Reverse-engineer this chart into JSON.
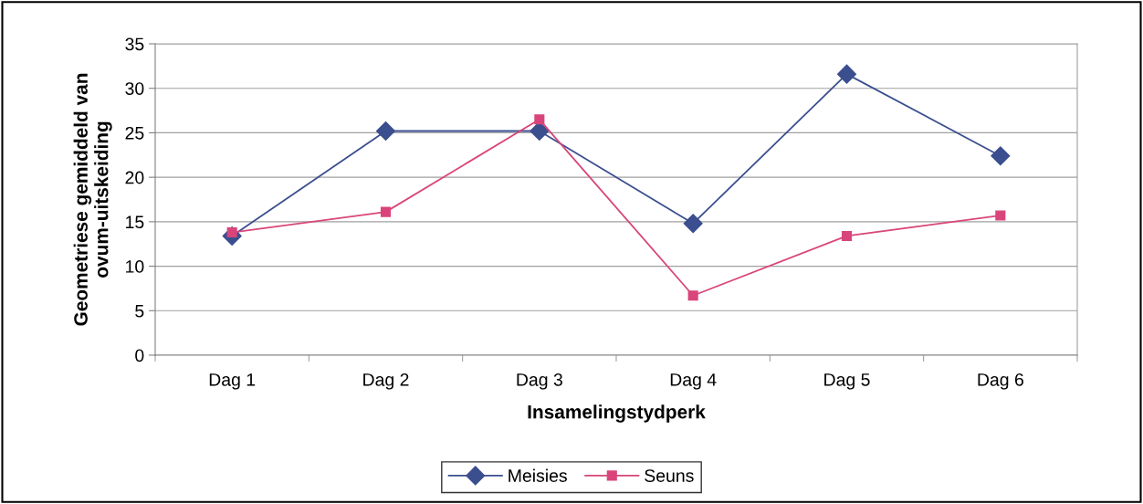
{
  "chart_data": {
    "type": "line",
    "xlabel": "Insamelingstydperk",
    "ylabel": "Geometriese gemiddeld van\novum-uitskeiding",
    "categories": [
      "Dag 1",
      "Dag 2",
      "Dag 3",
      "Dag 4",
      "Dag 5",
      "Dag 6"
    ],
    "series": [
      {
        "name": "Meisies",
        "color": "#3b4f8f",
        "marker": "diamond",
        "values": [
          13.4,
          25.2,
          25.2,
          14.8,
          31.6,
          22.4
        ]
      },
      {
        "name": "Seuns",
        "color": "#d9457a",
        "marker": "square",
        "values": [
          13.8,
          16.1,
          26.5,
          6.7,
          13.4,
          15.7
        ]
      }
    ],
    "ylim": [
      0,
      35
    ],
    "yticks": [
      0,
      5,
      10,
      15,
      20,
      25,
      30,
      35
    ],
    "grid": "y",
    "legend": "bottom",
    "line_style": "solid"
  }
}
